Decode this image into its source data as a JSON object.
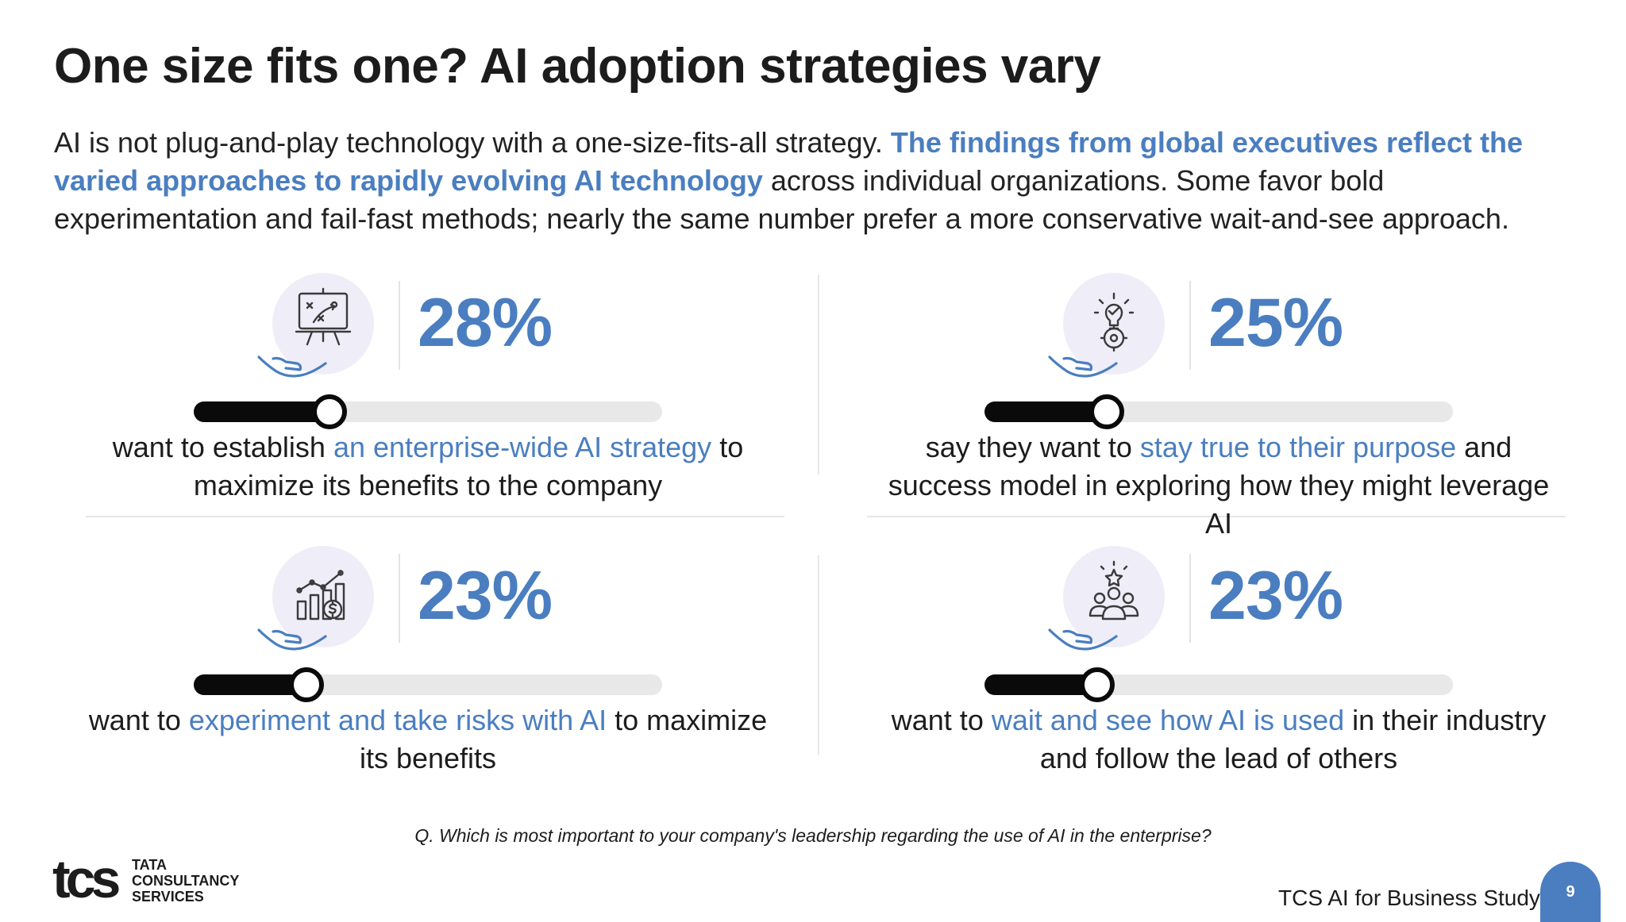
{
  "title": "One size fits one? AI adoption strategies vary",
  "intro": {
    "part1": "AI is not plug-and-play technology with a one-size-fits-all strategy. ",
    "highlight": "The findings from global executives reflect the varied approaches to rapidly evolving AI technology",
    "part2": " across individual organizations. Some favor bold experimentation and fail-fast methods; nearly the same number prefer a more conservative wait-and-see approach."
  },
  "chart_data": {
    "type": "bar",
    "title": "",
    "unit": "%",
    "categories": [
      "want to establish an enterprise-wide AI strategy to maximize its benefits to the company",
      "say they want to stay true to their purpose and success model in exploring how they might leverage AI",
      "want to experiment and take risks with AI to maximize its benefits",
      "want to wait and see how AI is used in their industry and follow the lead of others"
    ],
    "values": [
      28,
      25,
      23,
      23
    ],
    "ylim": [
      0,
      100
    ]
  },
  "stats": [
    {
      "value": 28,
      "label": "28%",
      "icon": "strategy-board-icon",
      "desc_pre": "want to establish ",
      "desc_hl": "an enterprise-wide AI strategy",
      "desc_post": " to maximize its benefits to the company"
    },
    {
      "value": 25,
      "label": "25%",
      "icon": "lightbulb-gear-icon",
      "desc_pre": "say they want to ",
      "desc_hl": "stay true to their purpose",
      "desc_post": " and success model in exploring how they might leverage AI"
    },
    {
      "value": 23,
      "label": "23%",
      "icon": "growth-chart-icon",
      "desc_pre": "want to ",
      "desc_hl": "experiment and take risks with AI",
      "desc_post": " to maximize its benefits"
    },
    {
      "value": 23,
      "label": "23%",
      "icon": "team-star-icon",
      "desc_pre": "want to ",
      "desc_hl": "wait and see how AI is used",
      "desc_post": " in their industry and follow the lead of others"
    }
  ],
  "question": "Q. Which is most important to your company's leadership regarding the use of AI in the enterprise?",
  "logo": {
    "mark": "tcs",
    "line1": "TATA",
    "line2": "CONSULTANCY",
    "line3": "SERVICES"
  },
  "footer": "TCS AI for Business Study",
  "page_number": "9",
  "colors": {
    "accent": "#4a7ec0",
    "bar_fill": "#0a0a0a",
    "bar_track": "#e8e8e8",
    "icon_bg": "#efedf7"
  }
}
